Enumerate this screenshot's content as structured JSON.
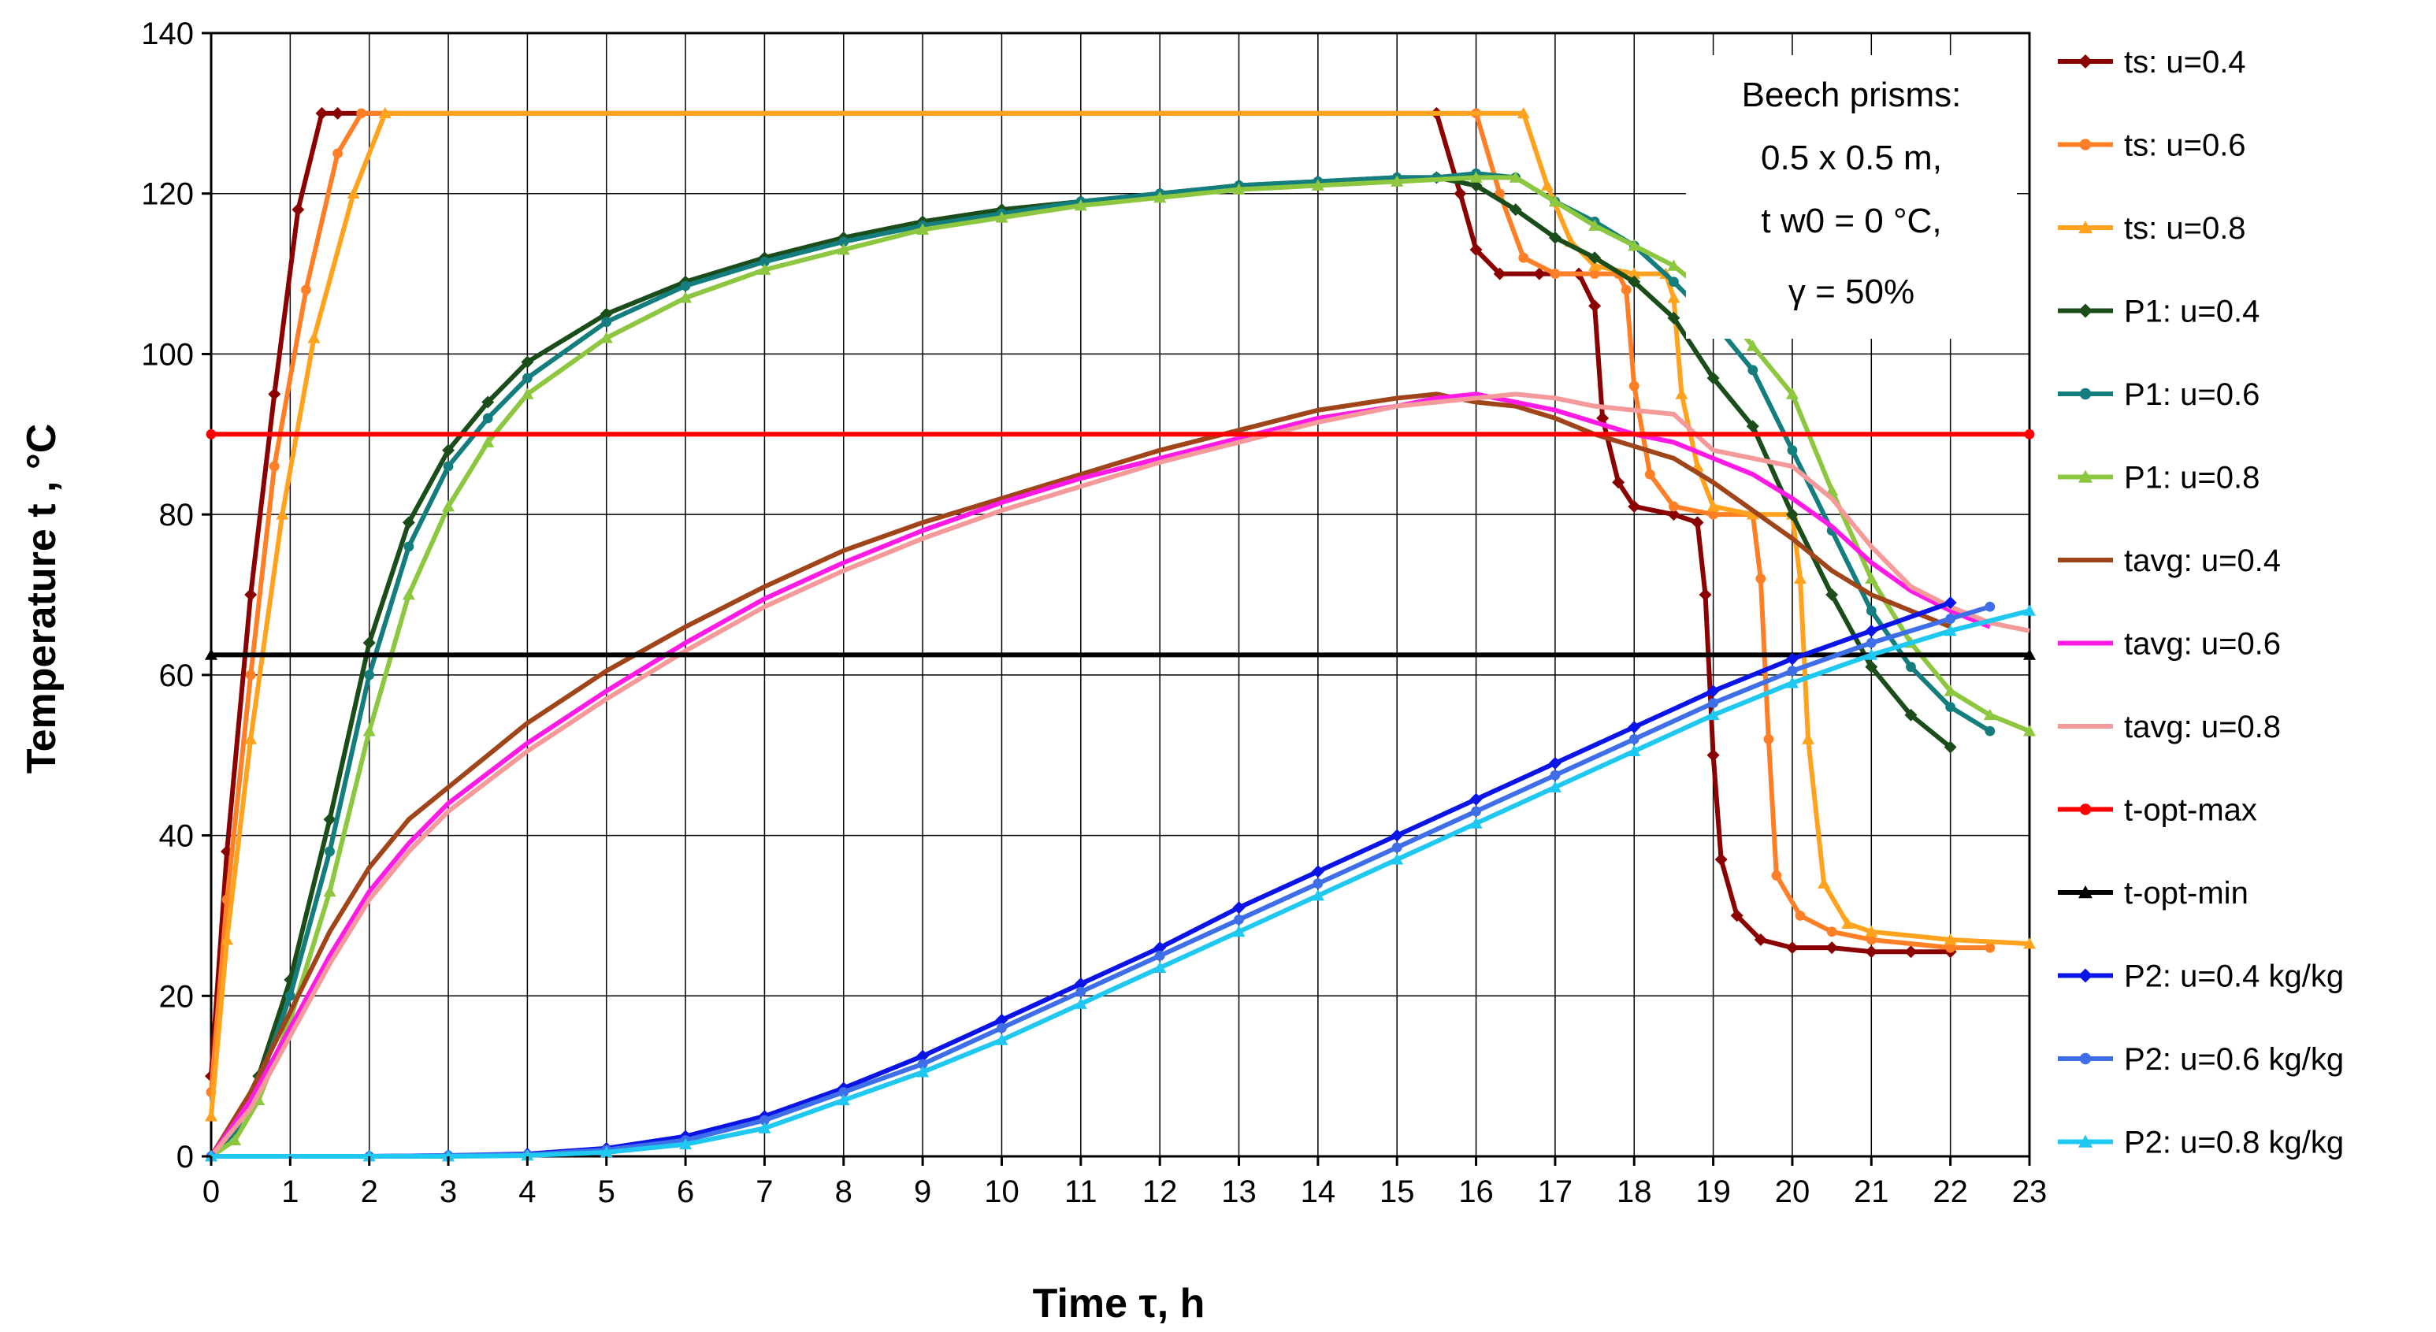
{
  "chart_data": {
    "type": "line",
    "xlabel": "Time τ, h",
    "ylabel": "Temperature t , °C",
    "xlim": [
      0,
      23
    ],
    "ylim": [
      0,
      140
    ],
    "xticks": [
      0,
      1,
      2,
      3,
      4,
      5,
      6,
      7,
      8,
      9,
      10,
      11,
      12,
      13,
      14,
      15,
      16,
      17,
      18,
      19,
      20,
      21,
      22,
      23
    ],
    "yticks": [
      0,
      20,
      40,
      60,
      80,
      100,
      120,
      140
    ],
    "grid": true,
    "legend_position": "right",
    "annotation": {
      "line1": "Beech prisms:",
      "line2": "0.5 x 0.5 m,",
      "line3": "t w0 = 0 °C,",
      "line4": "γ = 50%"
    },
    "series": [
      {
        "name": "ts:  u=0.4",
        "color": "#8b0000",
        "marker": "diamond",
        "x": [
          0,
          0.2,
          0.5,
          0.8,
          1.1,
          1.4,
          1.6,
          15.5,
          15.8,
          16.0,
          16.3,
          16.8,
          17.3,
          17.5,
          17.6,
          17.8,
          18.0,
          18.5,
          18.8,
          18.9,
          19.0,
          19.1,
          19.3,
          19.6,
          20.0,
          20.5,
          21.0,
          21.5,
          22.0
        ],
        "y": [
          10,
          38,
          70,
          95,
          118,
          130,
          130,
          130,
          120,
          113,
          110,
          110,
          110,
          106,
          92,
          84,
          81,
          80,
          79,
          70,
          50,
          37,
          30,
          27,
          26,
          26,
          25.5,
          25.5,
          25.5
        ]
      },
      {
        "name": "ts:  u=0.6",
        "color": "#ff7f27",
        "marker": "circle",
        "x": [
          0,
          0.2,
          0.5,
          0.8,
          1.2,
          1.6,
          1.9,
          16.0,
          16.3,
          16.6,
          17.0,
          17.5,
          17.8,
          17.9,
          18.0,
          18.2,
          18.5,
          19.0,
          19.5,
          19.6,
          19.7,
          19.8,
          20.1,
          20.5,
          21.0,
          22.0,
          22.5
        ],
        "y": [
          8,
          32,
          60,
          86,
          108,
          125,
          130,
          130,
          120,
          112,
          110,
          110,
          110,
          108,
          96,
          85,
          81,
          80,
          80,
          72,
          52,
          35,
          30,
          28,
          27,
          26,
          26
        ]
      },
      {
        "name": "ts:  u=0.8",
        "color": "#ffa21d",
        "marker": "triangle",
        "x": [
          0,
          0.2,
          0.5,
          0.9,
          1.3,
          1.8,
          2.2,
          16.6,
          16.9,
          17.2,
          17.5,
          18.0,
          18.4,
          18.5,
          18.6,
          18.8,
          19.0,
          19.5,
          20.0,
          20.1,
          20.2,
          20.4,
          20.7,
          21.0,
          22.0,
          23.0
        ],
        "y": [
          5,
          27,
          52,
          80,
          102,
          120,
          130,
          130,
          121,
          114,
          111,
          110,
          110,
          107,
          95,
          86,
          81,
          80,
          80,
          72,
          52,
          34,
          29,
          28,
          27,
          26.5
        ]
      },
      {
        "name": "P1: u=0.4",
        "color": "#1a4d1a",
        "marker": "diamond",
        "x": [
          0,
          0.3,
          0.6,
          1.0,
          1.5,
          2.0,
          2.5,
          3.0,
          3.5,
          4.0,
          5.0,
          6.0,
          7.0,
          8.0,
          9.0,
          10.0,
          11.0,
          12.0,
          13.0,
          14.0,
          15.0,
          15.5,
          16.0,
          16.5,
          17.0,
          17.5,
          18.0,
          18.5,
          19.0,
          19.5,
          20.0,
          20.5,
          21.0,
          21.5,
          22.0
        ],
        "y": [
          0,
          4,
          10,
          22,
          42,
          64,
          79,
          88,
          94,
          99,
          105,
          109,
          112,
          114.5,
          116.5,
          118,
          119,
          120,
          121,
          121.5,
          122,
          122,
          121,
          118,
          114.5,
          112,
          109,
          104.5,
          97,
          91,
          80,
          70,
          61,
          55,
          51
        ]
      },
      {
        "name": "P1: u=0.6",
        "color": "#147e7e",
        "marker": "circle",
        "x": [
          0,
          0.3,
          0.6,
          1.0,
          1.5,
          2.0,
          2.5,
          3.0,
          3.5,
          4.0,
          5.0,
          6.0,
          7.0,
          8.0,
          9.0,
          10.0,
          11.0,
          12.0,
          13.0,
          14.0,
          15.0,
          15.5,
          16.0,
          16.5,
          17.0,
          17.5,
          18.0,
          18.5,
          19.0,
          19.5,
          20.0,
          20.5,
          21.0,
          21.5,
          22.0,
          22.5
        ],
        "y": [
          0,
          3,
          9,
          20,
          38,
          60,
          76,
          86,
          92,
          97,
          104,
          108.5,
          111.5,
          114,
          116,
          117.5,
          119,
          120,
          121,
          121.5,
          122,
          122,
          122.5,
          122,
          119,
          116.5,
          113.5,
          109,
          104,
          98,
          88,
          78,
          68,
          61,
          56,
          53
        ]
      },
      {
        "name": "P1: u=0.8",
        "color": "#8dc63f",
        "marker": "triangle",
        "x": [
          0,
          0.3,
          0.6,
          1.0,
          1.5,
          2.0,
          2.5,
          3.0,
          3.5,
          4.0,
          5.0,
          6.0,
          7.0,
          8.0,
          9.0,
          10.0,
          11.0,
          12.0,
          13.0,
          14.0,
          15.0,
          16.0,
          16.5,
          17.0,
          17.5,
          18.0,
          18.5,
          19.0,
          19.5,
          20.0,
          20.5,
          21.0,
          21.5,
          22.0,
          22.5,
          23.0
        ],
        "y": [
          0,
          2,
          7,
          17,
          33,
          53,
          70,
          81,
          89,
          95,
          102,
          107,
          110.5,
          113,
          115.5,
          117,
          118.5,
          119.5,
          120.5,
          121,
          121.5,
          122,
          122,
          119,
          116,
          113.5,
          111,
          107,
          101,
          95,
          83,
          72,
          64,
          58,
          55,
          53
        ]
      },
      {
        "name": "tavg: u=0.4",
        "color": "#a0441a",
        "marker": "none",
        "x": [
          0,
          0.5,
          1.0,
          1.5,
          2.0,
          2.5,
          3.0,
          4.0,
          5.0,
          6.0,
          7.0,
          8.0,
          9.0,
          10.0,
          11.0,
          12.0,
          13.0,
          14.0,
          15.0,
          15.5,
          16.0,
          16.5,
          17.0,
          17.5,
          18.0,
          18.5,
          19.0,
          19.5,
          20.0,
          20.5,
          21.0,
          21.5,
          22.0
        ],
        "y": [
          0,
          8,
          18,
          28,
          36,
          42,
          46,
          54,
          60.5,
          66,
          71,
          75.5,
          79,
          82,
          85,
          88,
          90.5,
          93,
          94.5,
          95,
          94,
          93.5,
          92,
          90,
          88.5,
          87,
          84,
          80.5,
          77,
          73,
          70,
          68,
          66
        ]
      },
      {
        "name": "tavg: u=0.6",
        "color": "#ff1ae6",
        "marker": "none",
        "x": [
          0,
          0.5,
          1.0,
          1.5,
          2.0,
          2.5,
          3.0,
          4.0,
          5.0,
          6.0,
          7.0,
          8.0,
          9.0,
          10.0,
          11.0,
          12.0,
          13.0,
          14.0,
          15.0,
          15.5,
          16.0,
          16.5,
          17.0,
          17.5,
          18.0,
          18.5,
          19.0,
          19.5,
          20.0,
          20.5,
          21.0,
          21.5,
          22.0,
          22.5
        ],
        "y": [
          0,
          7,
          16,
          25,
          33,
          39,
          44,
          51.5,
          58,
          64,
          69.5,
          74,
          78,
          81.5,
          84.5,
          87,
          89.5,
          92,
          93.5,
          94.5,
          95,
          94,
          93,
          91.5,
          90,
          89,
          87,
          85,
          82,
          78.5,
          74,
          70.5,
          68,
          66
        ]
      },
      {
        "name": "tavg: u=0.8",
        "color": "#f59a9a",
        "marker": "none",
        "x": [
          0,
          0.5,
          1.0,
          1.5,
          2.0,
          2.5,
          3.0,
          4.0,
          5.0,
          6.0,
          7.0,
          8.0,
          9.0,
          10.0,
          11.0,
          12.0,
          13.0,
          14.0,
          15.0,
          16.0,
          16.5,
          17.0,
          17.5,
          18.0,
          18.5,
          19.0,
          19.5,
          20.0,
          20.5,
          21.0,
          21.5,
          22.0,
          22.5,
          23.0
        ],
        "y": [
          0,
          6,
          15,
          24,
          32,
          38,
          43,
          50.5,
          57,
          63,
          68.5,
          73,
          77,
          80.5,
          83.5,
          86.5,
          89,
          91.5,
          93.5,
          94.5,
          95,
          94.5,
          93.5,
          93,
          92.5,
          88,
          87,
          86,
          82,
          76,
          71,
          68.5,
          66.5,
          65.5
        ]
      },
      {
        "name": "t-opt-max",
        "color": "#ff0000",
        "marker": "circle",
        "x": [
          0,
          23
        ],
        "y": [
          90,
          90
        ]
      },
      {
        "name": "t-opt-min",
        "color": "#000000",
        "marker": "triangle",
        "x": [
          0,
          23
        ],
        "y": [
          62.5,
          62.5
        ]
      },
      {
        "name": "P2: u=0.4 kg/kg",
        "color": "#0a14e6",
        "marker": "diamond",
        "x": [
          0,
          2,
          3,
          4,
          5,
          6,
          7,
          8,
          9,
          10,
          11,
          12,
          13,
          14,
          15,
          16,
          17,
          18,
          19,
          20,
          21,
          22
        ],
        "y": [
          0,
          0,
          0.1,
          0.3,
          1,
          2.5,
          5,
          8.5,
          12.5,
          17,
          21.5,
          26,
          31,
          35.5,
          40,
          44.5,
          49,
          53.5,
          58,
          62,
          65.5,
          69
        ]
      },
      {
        "name": "P2: u=0.6 kg/kg",
        "color": "#3e6fe8",
        "marker": "circle",
        "x": [
          0,
          2,
          3,
          4,
          5,
          6,
          7,
          8,
          9,
          10,
          11,
          12,
          13,
          14,
          15,
          16,
          17,
          18,
          19,
          20,
          21,
          22,
          22.5
        ],
        "y": [
          0,
          0,
          0.1,
          0.2,
          0.8,
          2,
          4.5,
          8,
          11.5,
          16,
          20.5,
          25,
          29.5,
          34,
          38.5,
          43,
          47.5,
          52,
          56.5,
          60.5,
          64,
          67,
          68.5
        ]
      },
      {
        "name": "P2: u=0.8 kg/kg",
        "color": "#1ec8f0",
        "marker": "triangle",
        "x": [
          0,
          2,
          3,
          4,
          5,
          6,
          7,
          8,
          9,
          10,
          11,
          12,
          13,
          14,
          15,
          16,
          17,
          18,
          19,
          20,
          21,
          22,
          23
        ],
        "y": [
          0,
          0,
          0,
          0.1,
          0.5,
          1.5,
          3.5,
          7,
          10.5,
          14.5,
          19,
          23.5,
          28,
          32.5,
          37,
          41.5,
          46,
          50.5,
          55,
          59,
          62.5,
          65.5,
          68
        ]
      }
    ]
  }
}
